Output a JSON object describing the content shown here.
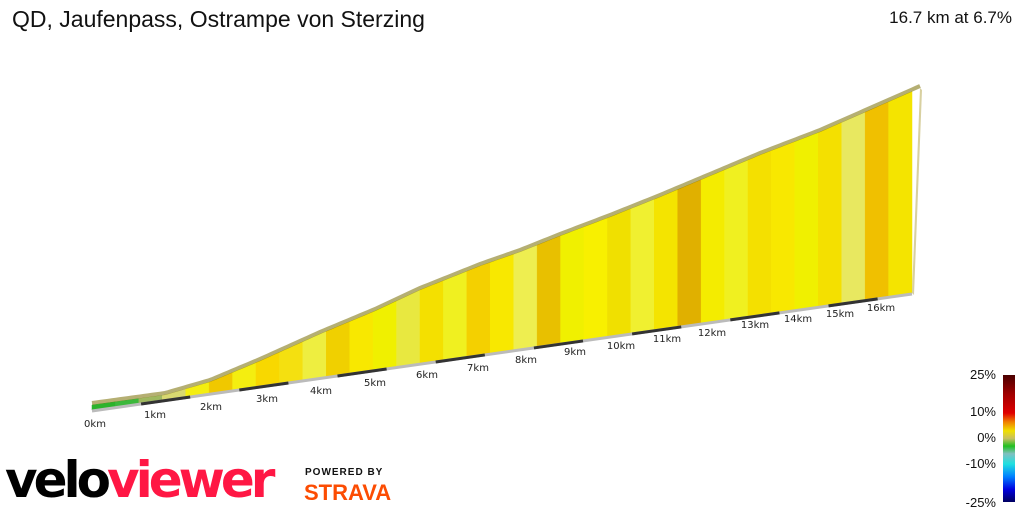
{
  "header": {
    "title": "QD, Jaufenpass, Ostrampe von Sterzing",
    "summary": "16.7 km at 6.7%"
  },
  "profile": {
    "km_labels": [
      "0km",
      "1km",
      "2km",
      "3km",
      "4km",
      "5km",
      "6km",
      "7km",
      "8km",
      "9km",
      "10km",
      "11km",
      "12km",
      "13km",
      "14km",
      "15km",
      "16km"
    ],
    "segment_colors": [
      "#2cb32c",
      "#3cb83c",
      "#9fb860",
      "#d8d870",
      "#f4ee10",
      "#f0c800",
      "#f4ee10",
      "#f8d800",
      "#f4e010",
      "#eeee40",
      "#f0d000",
      "#f8e800",
      "#f0f000",
      "#e8e840",
      "#f4e000",
      "#f0f020",
      "#f4d000",
      "#f8e800",
      "#eeee50",
      "#e8c000",
      "#f0f000",
      "#f8f000",
      "#f0e000",
      "#f0f030",
      "#f4e400",
      "#e0b000",
      "#f4ec00",
      "#f0f020",
      "#f4e000",
      "#f8e800",
      "#f0f000",
      "#f4e000",
      "#e8e860",
      "#f0c000",
      "#f4e400"
    ]
  },
  "legend": {
    "labels": [
      "25%",
      "10%",
      "0%",
      "-10%",
      "-25%"
    ]
  },
  "branding": {
    "velo": "velo",
    "viewer": "viewer",
    "powered_by": "POWERED BY",
    "strava": "STRAVA"
  }
}
